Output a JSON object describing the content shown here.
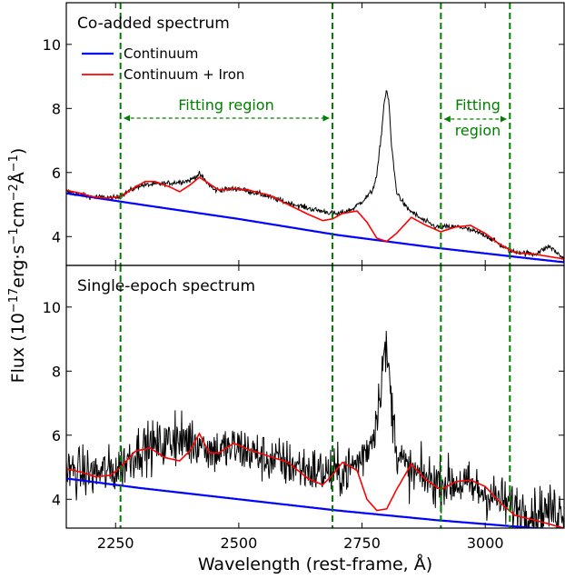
{
  "chart_data": {
    "type": "line",
    "xlabel": "Wavelength (rest-frame, Å)",
    "ylabel": "Flux (10^-17 erg·s^-1 cm^-2 Å^-1)",
    "xlim": [
      2150,
      3160
    ],
    "x_ticks": [
      2250,
      2500,
      2750,
      3000
    ],
    "y_ticks": [
      4,
      6,
      8,
      10
    ],
    "fitting_region_bounds": [
      [
        2260,
        2690
      ],
      [
        2910,
        3050
      ]
    ],
    "legend": {
      "placement": "upper-left",
      "entries": [
        "Continuum",
        "Continuum + Iron"
      ]
    },
    "colors": {
      "continuum": "#0000ff",
      "iron": "#ff0000",
      "data": "#000000",
      "region": "#008000"
    },
    "panels": [
      {
        "title": "Co-added spectrum",
        "ylim": [
          3.1,
          11.3
        ],
        "region_labels": [
          {
            "lines": [
              "Fitting region"
            ]
          },
          {
            "lines": [
              "Fitting",
              "region"
            ]
          }
        ],
        "series": [
          {
            "name": "Continuum",
            "x": [
              2150,
              2300,
              2500,
              2700,
              2900,
              3100,
              3160
            ],
            "y": [
              5.35,
              5.0,
              4.55,
              4.05,
              3.65,
              3.3,
              3.2
            ]
          },
          {
            "name": "Continuum + Iron",
            "x": [
              2150,
              2180,
              2200,
              2230,
              2260,
              2290,
              2310,
              2330,
              2360,
              2380,
              2400,
              2420,
              2440,
              2460,
              2490,
              2520,
              2560,
              2600,
              2640,
              2670,
              2690,
              2710,
              2740,
              2760,
              2780,
              2800,
              2820,
              2850,
              2880,
              2910,
              2940,
              2970,
              3000,
              3030,
              3060,
              3100,
              3160
            ],
            "y": [
              5.45,
              5.35,
              5.25,
              5.2,
              5.25,
              5.55,
              5.72,
              5.72,
              5.55,
              5.4,
              5.6,
              5.85,
              5.65,
              5.45,
              5.5,
              5.45,
              5.3,
              5.0,
              4.7,
              4.5,
              4.55,
              4.72,
              4.8,
              4.45,
              3.95,
              3.85,
              4.1,
              4.6,
              4.35,
              4.15,
              4.3,
              4.35,
              4.1,
              3.75,
              3.5,
              3.45,
              3.3
            ]
          },
          {
            "name": "Spectrum",
            "x": [
              2150,
              2200,
              2250,
              2300,
              2350,
              2400,
              2420,
              2450,
              2500,
              2550,
              2600,
              2650,
              2700,
              2730,
              2750,
              2770,
              2780,
              2790,
              2795,
              2800,
              2805,
              2810,
              2820,
              2840,
              2870,
              2900,
              2950,
              3000,
              3050,
              3100,
              3130,
              3160
            ],
            "y": [
              5.4,
              5.25,
              5.2,
              5.6,
              5.65,
              5.75,
              5.95,
              5.45,
              5.5,
              5.3,
              5.05,
              4.85,
              4.7,
              4.85,
              5.1,
              5.4,
              5.9,
              7.3,
              8.2,
              8.6,
              8.1,
              6.8,
              5.4,
              4.9,
              4.55,
              4.3,
              4.3,
              4.05,
              3.55,
              3.45,
              3.7,
              3.3
            ],
            "noise": 0.06
          }
        ]
      },
      {
        "title": "Single-epoch spectrum",
        "ylim": [
          3.1,
          11.3
        ],
        "series": [
          {
            "name": "Continuum",
            "x": [
              2150,
              2300,
              2500,
              2700,
              2900,
              3100,
              3160
            ],
            "y": [
              4.65,
              4.35,
              4.0,
              3.65,
              3.35,
              3.1,
              3.05
            ]
          },
          {
            "name": "Continuum + Iron",
            "x": [
              2150,
              2180,
              2210,
              2240,
              2260,
              2290,
              2320,
              2350,
              2380,
              2400,
              2420,
              2440,
              2460,
              2490,
              2520,
              2560,
              2600,
              2640,
              2670,
              2690,
              2710,
              2740,
              2760,
              2780,
              2800,
              2820,
              2850,
              2880,
              2910,
              2940,
              2970,
              3000,
              3030,
              3060,
              3100,
              3160
            ],
            "y": [
              4.95,
              4.85,
              4.7,
              4.75,
              5.0,
              5.5,
              5.6,
              5.3,
              5.2,
              5.5,
              6.05,
              5.45,
              5.45,
              5.75,
              5.55,
              5.35,
              5.15,
              4.65,
              4.45,
              4.75,
              5.15,
              4.9,
              4.0,
              3.65,
              3.7,
              4.3,
              5.1,
              4.6,
              4.3,
              4.55,
              4.6,
              4.4,
              3.9,
              3.5,
              3.35,
              3.1
            ]
          },
          {
            "name": "Spectrum",
            "x": [
              2150,
              2200,
              2250,
              2300,
              2350,
              2400,
              2450,
              2500,
              2550,
              2600,
              2650,
              2700,
              2730,
              2750,
              2770,
              2780,
              2790,
              2795,
              2800,
              2805,
              2810,
              2820,
              2840,
              2870,
              2900,
              2950,
              3000,
              3050,
              3100,
              3160
            ],
            "y": [
              4.9,
              4.8,
              4.9,
              5.6,
              5.7,
              5.8,
              5.5,
              5.6,
              5.3,
              5.1,
              4.9,
              4.8,
              5.0,
              5.3,
              5.9,
              6.6,
              7.9,
              8.6,
              8.5,
              7.9,
              6.9,
              5.6,
              4.9,
              4.7,
              4.55,
              4.5,
              4.2,
              3.8,
              3.6,
              3.7
            ],
            "noise": 0.55
          }
        ]
      }
    ]
  }
}
